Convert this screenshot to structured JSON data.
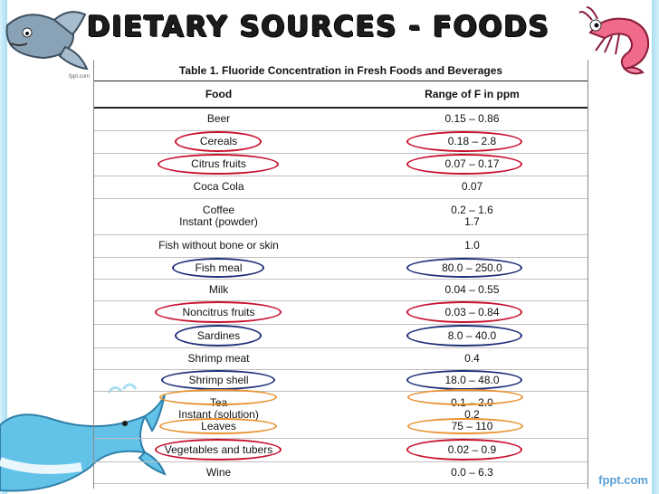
{
  "title": "Dietary Sources - Foods",
  "table": {
    "caption": "Table 1. Fluoride Concentration in Fresh Foods and Beverages",
    "headers": {
      "food": "Food",
      "range": "Range of F in ppm"
    },
    "rows": [
      {
        "food": "Beer",
        "range": "0.15 – 0.86",
        "mark": ""
      },
      {
        "food": "Cereals",
        "range": "0.18 – 2.8",
        "mark": "red"
      },
      {
        "food": "Citrus fruits",
        "range": "0.07 – 0.17",
        "mark": "red"
      },
      {
        "food": "Coca Cola",
        "range": "0.07",
        "mark": ""
      },
      {
        "food": "Coffee\nInstant (powder)",
        "range": "0.2 – 1.6\n1.7",
        "mark": ""
      },
      {
        "food": "Fish without bone or skin",
        "range": "1.0",
        "mark": ""
      },
      {
        "food": "Fish meal",
        "range": "80.0 – 250.0",
        "mark": "navy"
      },
      {
        "food": "Milk",
        "range": "0.04 – 0.55",
        "mark": ""
      },
      {
        "food": "Noncitrus fruits",
        "range": "0.03 – 0.84",
        "mark": "red"
      },
      {
        "food": "Sardines",
        "range": "8.0 – 40.0",
        "mark": "navy"
      },
      {
        "food": "Shrimp meat",
        "range": "0.4",
        "mark": ""
      },
      {
        "food": "Shrimp shell",
        "range": "18.0 – 48.0",
        "mark": "navy"
      },
      {
        "food": "Tea\nInstant (solution)\nLeaves",
        "range": "0.1 – 2.0\n0.2\n75 – 110",
        "mark": "orange"
      },
      {
        "food": "Vegetables and tubers",
        "range": "0.02 – 0.9",
        "mark": "red"
      },
      {
        "food": "Wine",
        "range": "0.0 – 6.3",
        "mark": ""
      }
    ]
  },
  "mark_colors": {
    "red": "#c8102e",
    "navy": "#1f2f7a",
    "orange": "#e8912f"
  },
  "footer": {
    "brand": "fppt.com",
    "fish_caption": "fppt.com"
  },
  "icons": [
    "fish-icon",
    "shrimp-icon",
    "whale-icon"
  ]
}
